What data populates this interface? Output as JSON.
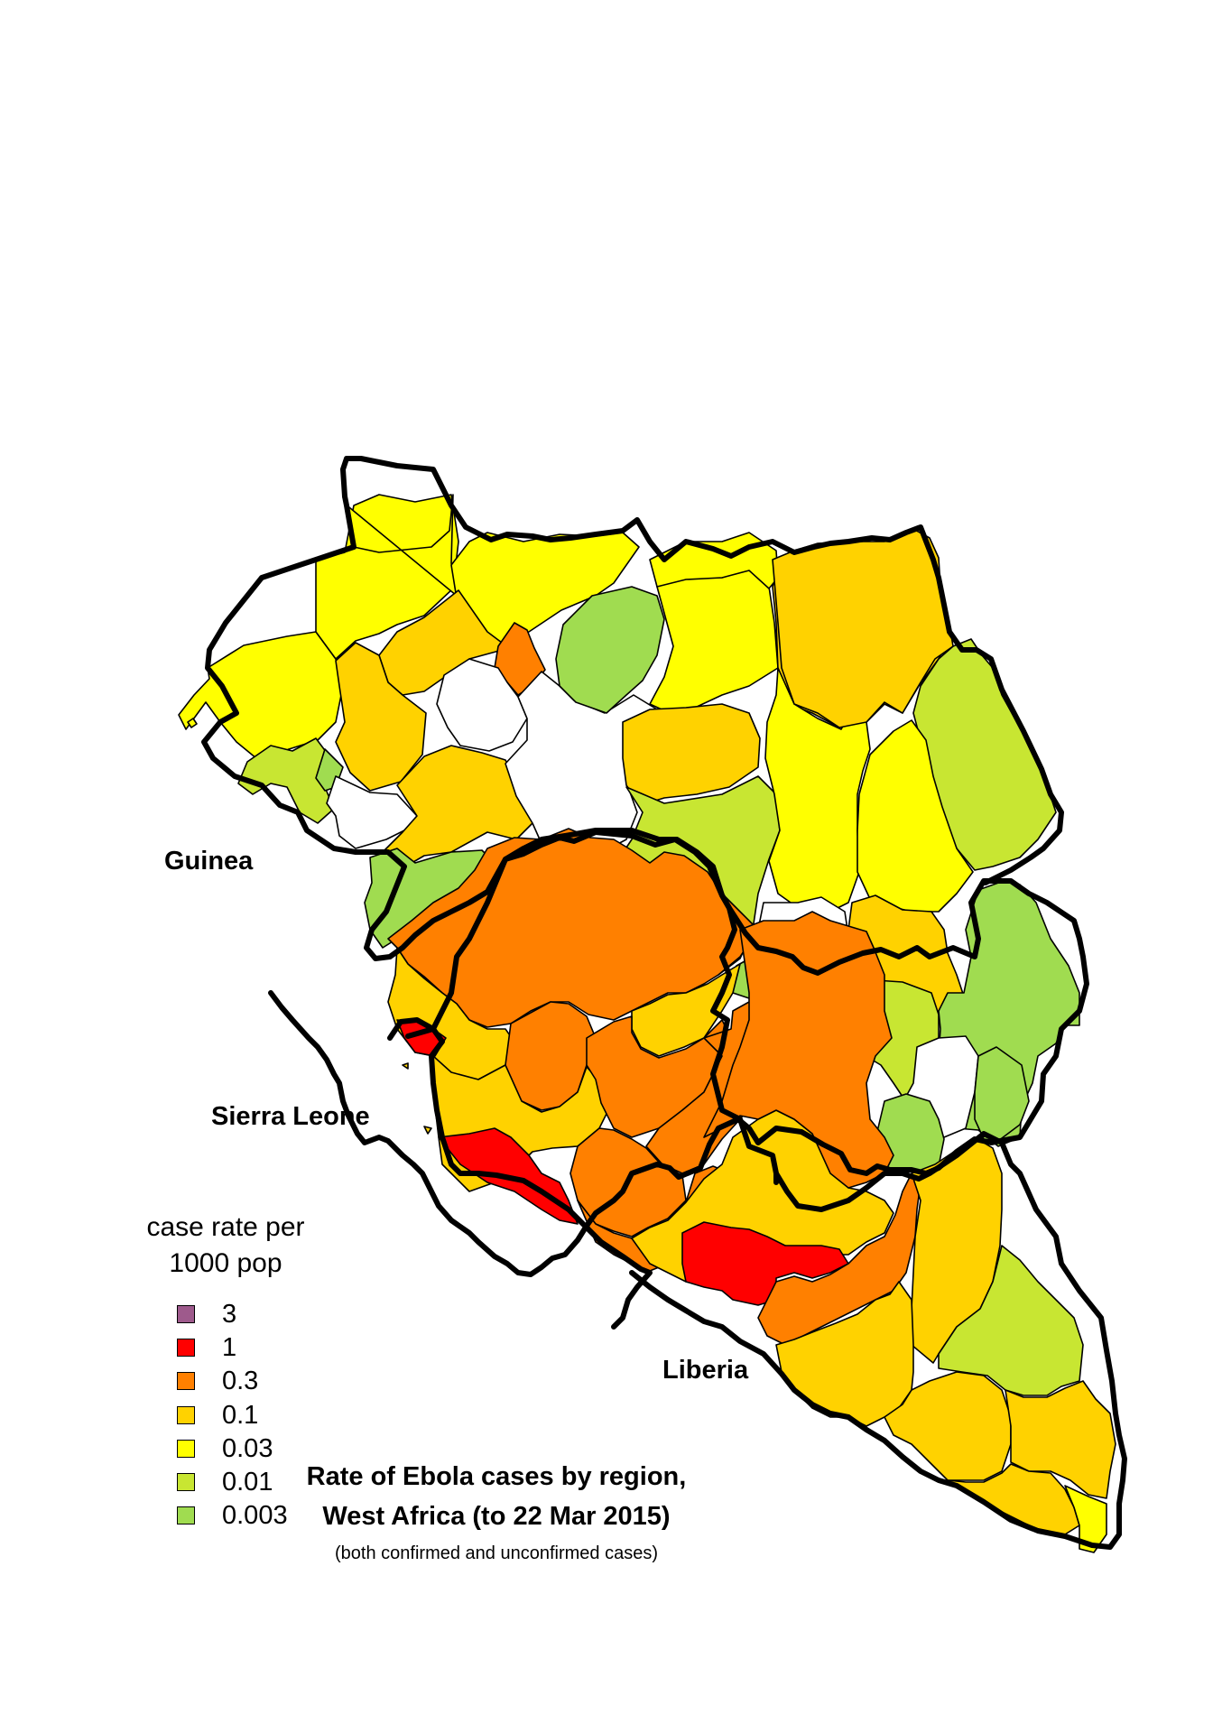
{
  "map": {
    "countries": {
      "guinea": "Guinea",
      "sierra_leone": "Sierra Leone",
      "liberia": "Liberia"
    },
    "colors": {
      "3": "#9e5a8c",
      "1": "#ff0000",
      "0.3": "#ff8000",
      "0.1": "#ffd200",
      "0.03": "#ffff00",
      "0.01": "#c8e632",
      "0.003": "#a0dc50",
      "no_data": "#ffffff"
    }
  },
  "legend": {
    "title_line1": "case rate per",
    "title_line2": "1000 pop",
    "items": [
      {
        "label": "3",
        "color": "#9e5a8c"
      },
      {
        "label": "1",
        "color": "#ff0000"
      },
      {
        "label": "0.3",
        "color": "#ff8000"
      },
      {
        "label": "0.1",
        "color": "#ffd200"
      },
      {
        "label": "0.03",
        "color": "#ffff00"
      },
      {
        "label": "0.01",
        "color": "#c8e632"
      },
      {
        "label": "0.003",
        "color": "#a0dc50"
      }
    ]
  },
  "caption": {
    "line1": "Rate of Ebola cases by region,",
    "line2": "West Africa (to 22 Mar 2015)",
    "note": "(both confirmed and unconfirmed cases)"
  }
}
